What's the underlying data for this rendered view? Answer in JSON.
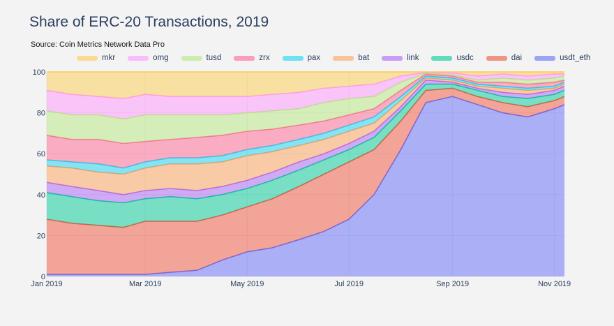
{
  "title": "Share of ERC-20 Transactions, 2019",
  "subtitle": "Source: Coin Metrics Network Data Pro",
  "chart_data": {
    "type": "area",
    "stacked": true,
    "x_tick_labels": [
      "Jan 2019",
      "Mar 2019",
      "May 2019",
      "Jul 2019",
      "Sep 2019",
      "Nov 2019"
    ],
    "x_tick_dates": [
      "2019-01-01",
      "2019-03-01",
      "2019-05-01",
      "2019-07-01",
      "2019-09-01",
      "2019-11-01"
    ],
    "x_range": [
      "2019-01-01",
      "2019-11-07"
    ],
    "y_tick_labels": [
      "0",
      "20",
      "40",
      "60",
      "80",
      "100"
    ],
    "ylim": [
      0,
      100
    ],
    "grid": true,
    "legend_position": "top",
    "dates": [
      "2019-01-01",
      "2019-01-16",
      "2019-02-01",
      "2019-02-16",
      "2019-03-01",
      "2019-03-16",
      "2019-04-01",
      "2019-04-16",
      "2019-05-01",
      "2019-05-16",
      "2019-06-01",
      "2019-06-16",
      "2019-07-01",
      "2019-07-16",
      "2019-08-01",
      "2019-08-16",
      "2019-09-01",
      "2019-09-16",
      "2019-10-01",
      "2019-10-16",
      "2019-11-01",
      "2019-11-07"
    ],
    "series": [
      {
        "name": "usdt_eth",
        "color": "#636efa",
        "values": [
          1,
          1,
          1,
          1,
          1,
          2,
          3,
          8,
          12,
          14,
          18,
          22,
          28,
          40,
          62,
          85,
          88,
          84,
          80,
          78,
          82,
          84
        ]
      },
      {
        "name": "dai",
        "color": "#ef553b",
        "values": [
          27,
          25,
          24,
          23,
          26,
          25,
          24,
          22,
          22,
          24,
          26,
          28,
          28,
          22,
          14,
          6,
          4,
          4,
          5,
          5,
          4,
          4
        ]
      },
      {
        "name": "usdc",
        "color": "#00cc96",
        "values": [
          13,
          13,
          12,
          12,
          11,
          12,
          11,
          10,
          9,
          9,
          8,
          7,
          6,
          6,
          5,
          3,
          2,
          3,
          3,
          4,
          3,
          3
        ]
      },
      {
        "name": "link",
        "color": "#ab63fa",
        "values": [
          5,
          5,
          5,
          4,
          4,
          4,
          4,
          4,
          4,
          4,
          4,
          3,
          3,
          3,
          2,
          2,
          1,
          1,
          2,
          2,
          2,
          2
        ]
      },
      {
        "name": "bat",
        "color": "#ffa15a",
        "values": [
          8,
          9,
          9,
          10,
          11,
          12,
          13,
          12,
          12,
          10,
          8,
          7,
          6,
          4,
          3,
          1,
          1,
          1,
          2,
          2,
          1,
          1
        ]
      },
      {
        "name": "pax",
        "color": "#19d3f3",
        "values": [
          3,
          3,
          4,
          3,
          3,
          3,
          3,
          3,
          3,
          3,
          3,
          3,
          3,
          3,
          2,
          1,
          1,
          1,
          1,
          1,
          1,
          1
        ]
      },
      {
        "name": "zrx",
        "color": "#ff6692",
        "values": [
          12,
          11,
          12,
          12,
          10,
          9,
          10,
          10,
          9,
          8,
          7,
          6,
          5,
          4,
          3,
          1,
          1,
          1,
          2,
          2,
          2,
          1
        ]
      },
      {
        "name": "tusd",
        "color": "#b6e880",
        "values": [
          12,
          12,
          12,
          12,
          13,
          12,
          11,
          10,
          9,
          9,
          8,
          9,
          8,
          6,
          4,
          0.5,
          0.5,
          1,
          2,
          2,
          2,
          2
        ]
      },
      {
        "name": "omg",
        "color": "#ff97ff",
        "values": [
          10,
          10,
          9,
          10,
          10,
          9,
          9,
          9,
          8,
          8,
          8,
          7,
          6,
          6,
          3,
          0.3,
          1,
          2,
          2,
          2,
          2,
          1
        ]
      },
      {
        "name": "mkr",
        "color": "#fecb52",
        "values": [
          9,
          11,
          12,
          13,
          11,
          12,
          12,
          12,
          12,
          11,
          10,
          8,
          7,
          6,
          2,
          0.2,
          0.5,
          2,
          1,
          2,
          1,
          1
        ]
      }
    ]
  }
}
